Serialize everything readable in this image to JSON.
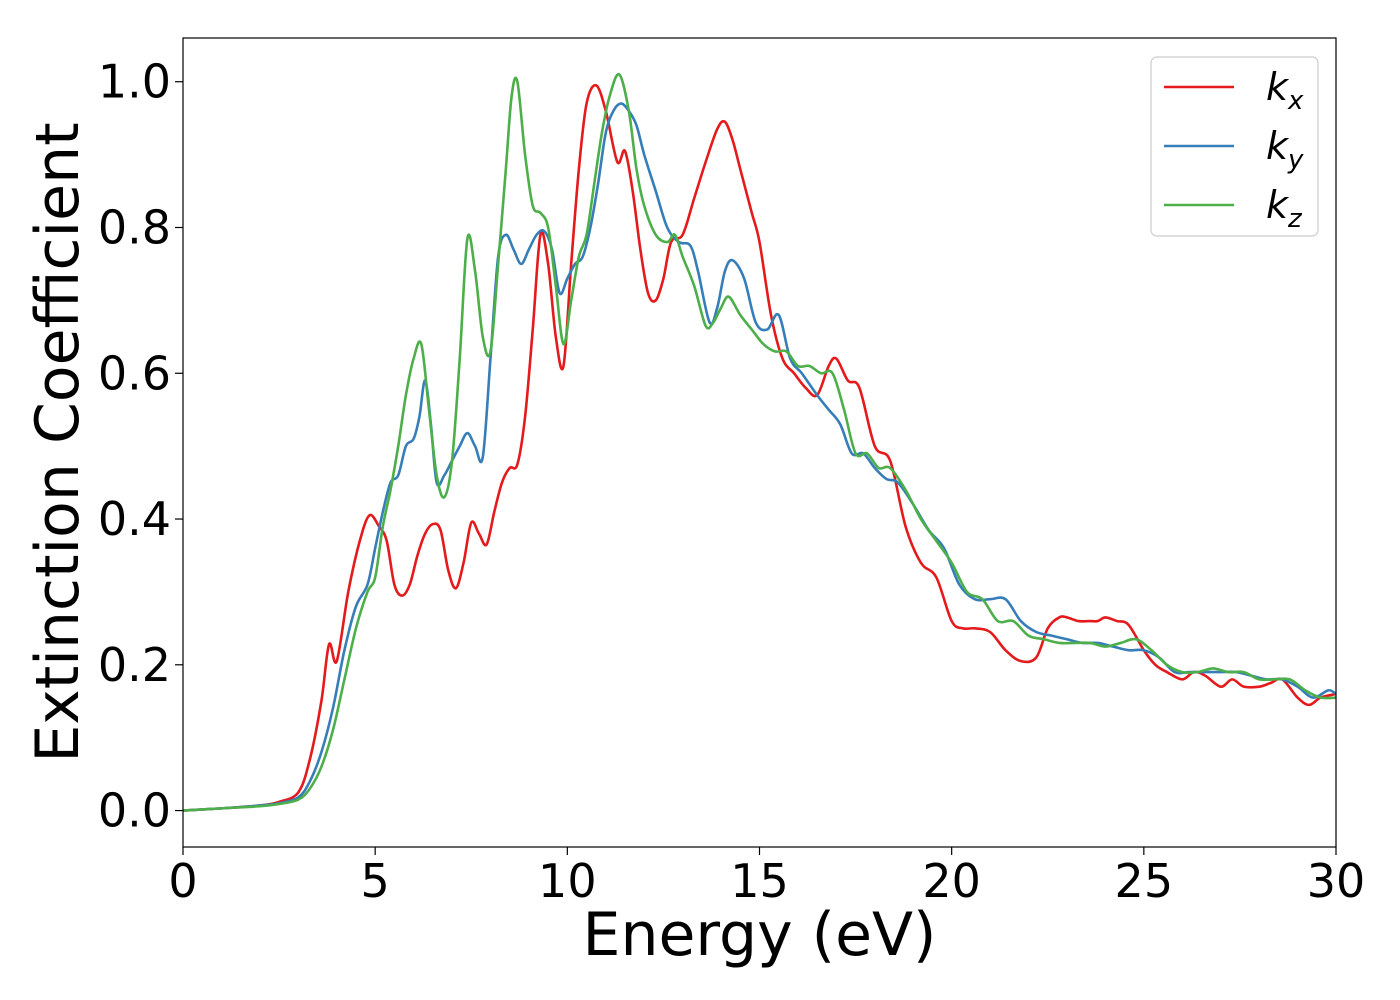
{
  "chart_data": {
    "type": "line",
    "xlabel": "Energy (eV)",
    "ylabel": "Extinction Coefficient",
    "xlim": [
      0,
      30
    ],
    "ylim": [
      -0.05,
      1.06
    ],
    "xticks": [
      0,
      5,
      10,
      15,
      20,
      25,
      30
    ],
    "yticks": [
      0.0,
      0.2,
      0.4,
      0.6,
      0.8,
      1.0
    ],
    "xtick_labels": [
      "0",
      "5",
      "10",
      "15",
      "20",
      "25",
      "30"
    ],
    "ytick_labels": [
      "0.0",
      "0.2",
      "0.4",
      "0.6",
      "0.8",
      "1.0"
    ],
    "grid": false,
    "legend_position": "top-right",
    "series": [
      {
        "name": "k_x",
        "label_main": "k",
        "label_sub": "x",
        "color": "#e41a1c",
        "x": [
          0,
          1,
          2,
          2.5,
          3.0,
          3.3,
          3.6,
          3.8,
          4.0,
          4.3,
          4.6,
          4.85,
          5.1,
          5.3,
          5.5,
          5.7,
          5.9,
          6.1,
          6.3,
          6.5,
          6.7,
          6.9,
          7.1,
          7.3,
          7.5,
          7.7,
          7.9,
          8.1,
          8.3,
          8.5,
          8.7,
          8.9,
          9.1,
          9.3,
          9.5,
          9.7,
          9.9,
          10.1,
          10.3,
          10.5,
          10.75,
          11.0,
          11.3,
          11.5,
          11.7,
          11.9,
          12.1,
          12.3,
          12.5,
          12.7,
          13.0,
          13.3,
          13.6,
          13.9,
          14.1,
          14.3,
          14.5,
          14.8,
          15.0,
          15.3,
          15.6,
          15.9,
          16.2,
          16.5,
          16.8,
          17.0,
          17.3,
          17.6,
          18.0,
          18.4,
          18.8,
          19.2,
          19.6,
          20.0,
          20.3,
          20.6,
          21.0,
          21.4,
          21.8,
          22.2,
          22.5,
          22.8,
          23.0,
          23.3,
          23.6,
          23.8,
          24.0,
          24.3,
          24.6,
          25.0,
          25.3,
          25.6,
          26.0,
          26.3,
          26.6,
          27.0,
          27.3,
          27.6,
          28.0,
          28.3,
          28.6,
          29.0,
          29.3,
          29.6,
          30.0
        ],
        "y": [
          0.0,
          0.003,
          0.007,
          0.012,
          0.025,
          0.07,
          0.15,
          0.228,
          0.205,
          0.3,
          0.37,
          0.405,
          0.39,
          0.37,
          0.31,
          0.295,
          0.31,
          0.35,
          0.38,
          0.393,
          0.385,
          0.33,
          0.305,
          0.34,
          0.395,
          0.38,
          0.365,
          0.41,
          0.45,
          0.47,
          0.475,
          0.54,
          0.66,
          0.79,
          0.75,
          0.65,
          0.61,
          0.75,
          0.88,
          0.97,
          0.995,
          0.96,
          0.89,
          0.905,
          0.85,
          0.77,
          0.71,
          0.7,
          0.73,
          0.78,
          0.79,
          0.84,
          0.89,
          0.935,
          0.945,
          0.92,
          0.88,
          0.82,
          0.78,
          0.68,
          0.62,
          0.6,
          0.58,
          0.57,
          0.61,
          0.62,
          0.59,
          0.58,
          0.5,
          0.48,
          0.39,
          0.34,
          0.32,
          0.26,
          0.25,
          0.25,
          0.245,
          0.22,
          0.205,
          0.21,
          0.25,
          0.265,
          0.265,
          0.26,
          0.26,
          0.26,
          0.265,
          0.26,
          0.255,
          0.22,
          0.2,
          0.19,
          0.18,
          0.19,
          0.185,
          0.17,
          0.18,
          0.17,
          0.17,
          0.175,
          0.18,
          0.155,
          0.145,
          0.155,
          0.16
        ]
      },
      {
        "name": "k_y",
        "label_main": "k",
        "label_sub": "y",
        "color": "#377eb8",
        "x": [
          0,
          1,
          2,
          2.5,
          3.0,
          3.3,
          3.6,
          3.9,
          4.2,
          4.5,
          4.8,
          5.0,
          5.2,
          5.4,
          5.6,
          5.8,
          6.0,
          6.15,
          6.3,
          6.45,
          6.6,
          6.8,
          7.0,
          7.2,
          7.4,
          7.6,
          7.8,
          8.0,
          8.2,
          8.4,
          8.6,
          8.8,
          9.0,
          9.2,
          9.4,
          9.6,
          9.8,
          10.0,
          10.2,
          10.4,
          10.6,
          10.8,
          11.0,
          11.2,
          11.4,
          11.6,
          11.8,
          12.0,
          12.3,
          12.6,
          12.9,
          13.2,
          13.4,
          13.7,
          13.9,
          14.1,
          14.3,
          14.6,
          14.9,
          15.2,
          15.5,
          15.8,
          16.1,
          16.5,
          16.8,
          17.1,
          17.4,
          17.7,
          18.0,
          18.3,
          18.6,
          19.0,
          19.4,
          19.8,
          20.2,
          20.6,
          21.0,
          21.4,
          21.8,
          22.2,
          22.6,
          23.0,
          23.4,
          23.8,
          24.2,
          24.6,
          25.0,
          25.4,
          25.8,
          26.2,
          26.6,
          27.0,
          27.4,
          27.8,
          28.2,
          28.6,
          29.0,
          29.4,
          29.8,
          30.0
        ],
        "y": [
          0.0,
          0.003,
          0.007,
          0.01,
          0.018,
          0.04,
          0.08,
          0.14,
          0.22,
          0.28,
          0.31,
          0.36,
          0.41,
          0.45,
          0.46,
          0.5,
          0.51,
          0.54,
          0.59,
          0.53,
          0.45,
          0.46,
          0.48,
          0.5,
          0.518,
          0.5,
          0.485,
          0.62,
          0.76,
          0.79,
          0.77,
          0.75,
          0.77,
          0.79,
          0.795,
          0.77,
          0.71,
          0.73,
          0.75,
          0.76,
          0.8,
          0.86,
          0.93,
          0.96,
          0.97,
          0.96,
          0.94,
          0.9,
          0.85,
          0.8,
          0.78,
          0.775,
          0.74,
          0.67,
          0.69,
          0.74,
          0.755,
          0.73,
          0.67,
          0.66,
          0.68,
          0.62,
          0.6,
          0.57,
          0.55,
          0.53,
          0.49,
          0.49,
          0.47,
          0.455,
          0.45,
          0.42,
          0.385,
          0.36,
          0.31,
          0.29,
          0.29,
          0.29,
          0.26,
          0.245,
          0.24,
          0.235,
          0.23,
          0.23,
          0.225,
          0.22,
          0.22,
          0.21,
          0.19,
          0.19,
          0.19,
          0.19,
          0.19,
          0.185,
          0.18,
          0.18,
          0.17,
          0.155,
          0.165,
          0.16
        ]
      },
      {
        "name": "k_z",
        "label_main": "k",
        "label_sub": "z",
        "color": "#4daf4a",
        "x": [
          0,
          1,
          2,
          2.5,
          3.0,
          3.3,
          3.6,
          3.9,
          4.2,
          4.5,
          4.8,
          5.0,
          5.2,
          5.4,
          5.6,
          5.8,
          6.0,
          6.2,
          6.4,
          6.6,
          6.8,
          7.0,
          7.2,
          7.4,
          7.6,
          7.8,
          8.0,
          8.2,
          8.4,
          8.55,
          8.7,
          8.9,
          9.1,
          9.3,
          9.5,
          9.7,
          9.9,
          10.1,
          10.3,
          10.5,
          10.7,
          10.9,
          11.1,
          11.35,
          11.6,
          11.8,
          12.0,
          12.3,
          12.6,
          12.8,
          13.0,
          13.3,
          13.6,
          13.8,
          14.0,
          14.2,
          14.5,
          14.8,
          15.1,
          15.4,
          15.7,
          16.0,
          16.3,
          16.6,
          16.9,
          17.2,
          17.5,
          17.8,
          18.1,
          18.4,
          18.8,
          19.2,
          19.6,
          20.0,
          20.4,
          20.8,
          21.2,
          21.6,
          22.0,
          22.4,
          22.8,
          23.2,
          23.6,
          24.0,
          24.4,
          24.8,
          25.2,
          25.6,
          26.0,
          26.4,
          26.8,
          27.2,
          27.6,
          28.0,
          28.4,
          28.8,
          29.2,
          29.6,
          30.0
        ],
        "y": [
          0.0,
          0.003,
          0.006,
          0.009,
          0.015,
          0.03,
          0.06,
          0.11,
          0.18,
          0.25,
          0.3,
          0.32,
          0.39,
          0.44,
          0.5,
          0.57,
          0.62,
          0.64,
          0.55,
          0.46,
          0.43,
          0.48,
          0.62,
          0.785,
          0.74,
          0.65,
          0.63,
          0.75,
          0.88,
          0.98,
          1.0,
          0.9,
          0.83,
          0.82,
          0.8,
          0.72,
          0.64,
          0.7,
          0.76,
          0.79,
          0.86,
          0.93,
          0.98,
          1.01,
          0.96,
          0.88,
          0.83,
          0.79,
          0.78,
          0.79,
          0.76,
          0.72,
          0.665,
          0.67,
          0.69,
          0.705,
          0.68,
          0.66,
          0.64,
          0.63,
          0.63,
          0.61,
          0.61,
          0.6,
          0.6,
          0.55,
          0.49,
          0.49,
          0.47,
          0.47,
          0.44,
          0.4,
          0.37,
          0.34,
          0.3,
          0.29,
          0.26,
          0.26,
          0.24,
          0.235,
          0.23,
          0.23,
          0.23,
          0.225,
          0.23,
          0.235,
          0.22,
          0.2,
          0.19,
          0.19,
          0.195,
          0.19,
          0.19,
          0.18,
          0.18,
          0.18,
          0.165,
          0.155,
          0.155
        ]
      }
    ]
  }
}
